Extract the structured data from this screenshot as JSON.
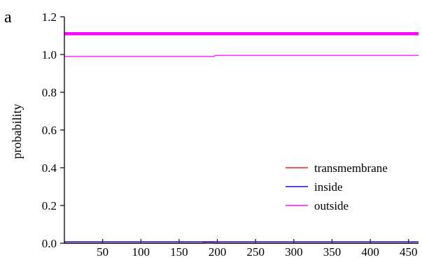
{
  "panel_label": "a",
  "chart_data": {
    "type": "line",
    "title": "",
    "xlabel": "",
    "ylabel": "probability",
    "xlim": [
      0,
      463
    ],
    "ylim": [
      0,
      1.2
    ],
    "xticks": [
      50,
      100,
      150,
      200,
      250,
      300,
      350,
      400,
      450
    ],
    "yticks": [
      "0.0",
      "0.2",
      "0.4",
      "0.6",
      "0.8",
      "1.0",
      "1.2"
    ],
    "legend_position": "bottom-right",
    "series": [
      {
        "name": "transmembrane",
        "color": "#ff3b3b",
        "points": [
          [
            0,
            0.0
          ],
          [
            180,
            0.0
          ],
          [
            185,
            0.006
          ],
          [
            195,
            0.006
          ],
          [
            197,
            0.0
          ],
          [
            463,
            0.0
          ]
        ]
      },
      {
        "name": "inside",
        "color": "#3333dd",
        "points": [
          [
            0,
            0.008
          ],
          [
            463,
            0.008
          ]
        ]
      },
      {
        "name": "outside",
        "color": "#ff33ff",
        "points": [
          [
            0,
            0.99
          ],
          [
            196,
            0.99
          ],
          [
            197,
            0.995
          ],
          [
            463,
            0.995
          ]
        ]
      }
    ],
    "band": {
      "y": 1.11,
      "color": "#ff00ff"
    }
  }
}
